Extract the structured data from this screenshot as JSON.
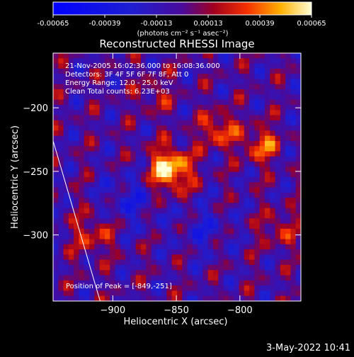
{
  "chart_data": {
    "type": "heatmap",
    "title": "Reconstructed RHESSI Image",
    "xlabel": "Heliocentric X (arcsec)",
    "ylabel": "Heliocentric Y (arcsec)",
    "xlim": [
      -947,
      -752
    ],
    "ylim": [
      -352,
      -157
    ],
    "xticks": [
      -900,
      -850,
      -800
    ],
    "yticks": [
      -200,
      -250,
      -300
    ],
    "colorbar": {
      "range": [
        -0.00065,
        0.00065
      ],
      "tick_values": [
        -0.00065,
        -0.00039,
        -0.00013,
        0.00013,
        0.00039,
        0.00065
      ],
      "tick_labels": [
        "-0.00065",
        "-0.00039",
        "-0.00013",
        "0.00013",
        "0.00039",
        "0.00065"
      ],
      "units": "(photons cm⁻² s⁻¹ asec⁻²)"
    },
    "annotations": [
      "21-Nov-2005 16:02:36.000 to 16:08:36.000",
      "Detectors: 3F 4F 5F 6F 7F 8F, Att 0",
      "Energy Range: 12.0 - 25.0 keV",
      "Clean    Total counts: 6.23E+03"
    ],
    "peak_label": "Position of Peak = [-849,-251]",
    "peak": {
      "x": -849,
      "y": -251
    },
    "limb_line": {
      "x": [
        -947,
        -910
      ],
      "y": [
        -226,
        -352
      ]
    }
  },
  "footer": {
    "timestamp": "3-May-2022 10:41"
  }
}
